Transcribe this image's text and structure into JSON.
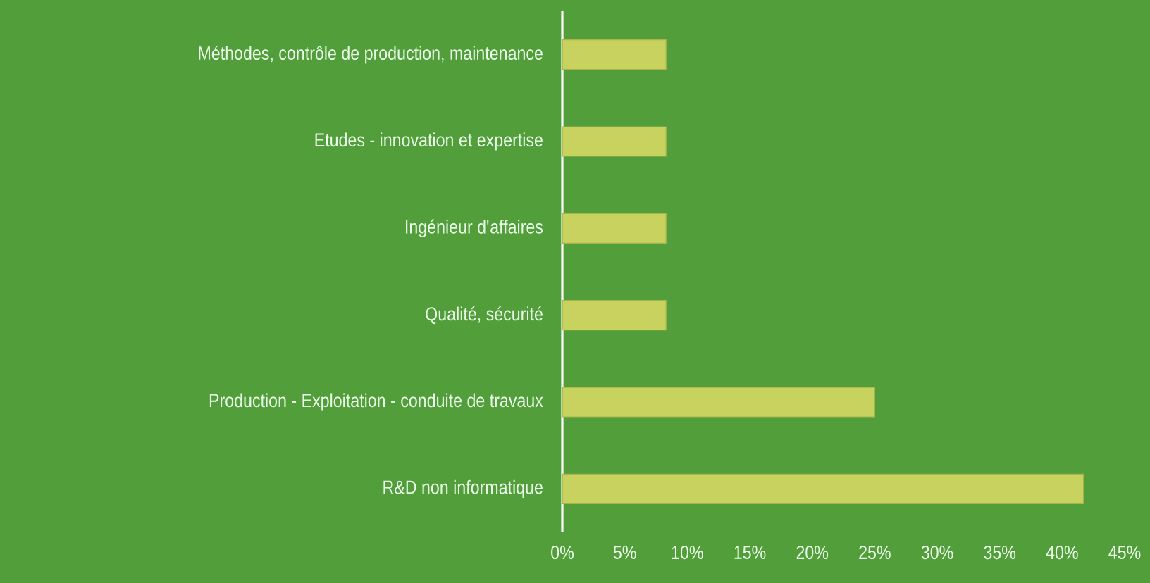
{
  "chart_data": {
    "type": "bar",
    "orientation": "horizontal",
    "categories": [
      "Méthodes, contrôle de production, maintenance",
      "Etudes - innovation et expertise",
      "Ingénieur d'affaires",
      "Qualité, sécurité",
      "Production - Exploitation - conduite de travaux",
      "R&D non informatique"
    ],
    "values": [
      8.3,
      8.3,
      8.3,
      8.3,
      25.0,
      41.7
    ],
    "color": "#c8d25e",
    "xlim": [
      0,
      45
    ],
    "xticks": [
      {
        "value": 0,
        "label": "0%"
      },
      {
        "value": 5,
        "label": "5%"
      },
      {
        "value": 10,
        "label": "10%"
      },
      {
        "value": 15,
        "label": "15%"
      },
      {
        "value": 20,
        "label": "20%"
      },
      {
        "value": 25,
        "label": "25%"
      },
      {
        "value": 30,
        "label": "30%"
      },
      {
        "value": 35,
        "label": "35%"
      },
      {
        "value": 40,
        "label": "40%"
      },
      {
        "value": 45,
        "label": "45%"
      }
    ]
  }
}
